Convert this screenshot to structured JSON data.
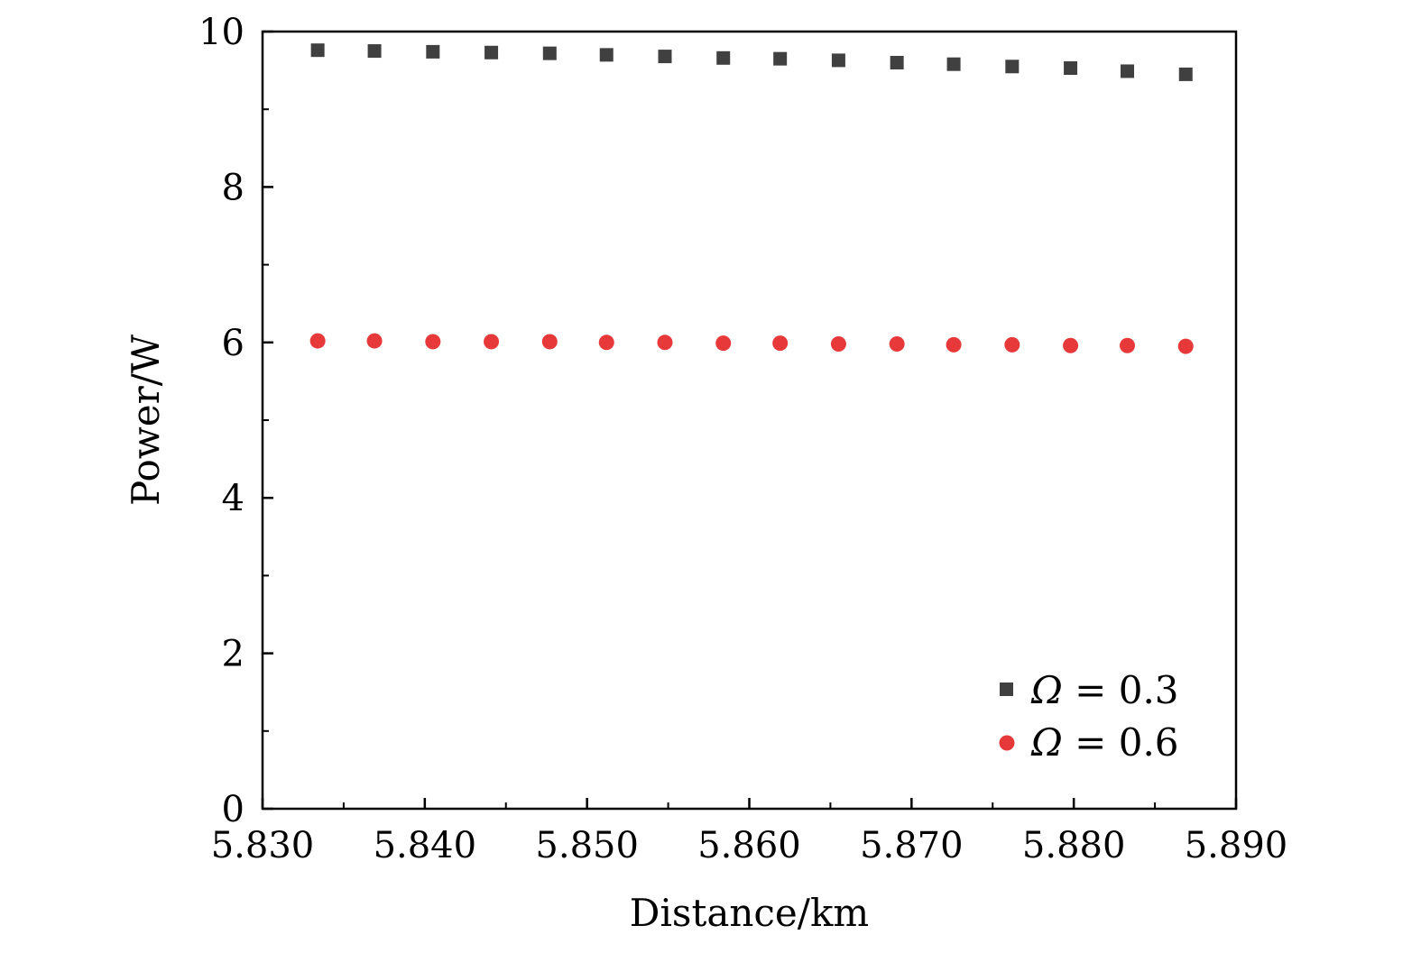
{
  "chart_data": {
    "type": "scatter",
    "title": "",
    "xlabel": "Distance/km",
    "ylabel": "Power/W",
    "xlim": [
      5.83,
      5.89
    ],
    "ylim": [
      0,
      10
    ],
    "x_ticks": [
      5.83,
      5.84,
      5.85,
      5.86,
      5.87,
      5.88,
      5.89
    ],
    "x_tick_labels": [
      "5.830",
      "5.840",
      "5.850",
      "5.860",
      "5.870",
      "5.880",
      "5.890"
    ],
    "y_ticks": [
      0,
      2,
      4,
      6,
      8,
      10
    ],
    "y_tick_labels": [
      "0",
      "2",
      "4",
      "6",
      "8",
      "10"
    ],
    "grid": false,
    "legend_position": "bottom-right",
    "series": [
      {
        "name": "Ω = 0.3",
        "name_symbol": "Ω",
        "name_rest": " = 0.3",
        "marker": "square",
        "color": "#404040",
        "x": [
          5.8334,
          5.8369,
          5.8405,
          5.8441,
          5.8477,
          5.8512,
          5.8548,
          5.8584,
          5.8619,
          5.8655,
          5.8691,
          5.8726,
          5.8762,
          5.8798,
          5.8833,
          5.8869
        ],
        "y": [
          9.76,
          9.75,
          9.74,
          9.73,
          9.72,
          9.7,
          9.68,
          9.66,
          9.65,
          9.63,
          9.6,
          9.58,
          9.55,
          9.53,
          9.49,
          9.45
        ]
      },
      {
        "name": "Ω = 0.6",
        "name_symbol": "Ω",
        "name_rest": " = 0.6",
        "marker": "circle",
        "color": "#e8393a",
        "x": [
          5.8334,
          5.8369,
          5.8405,
          5.8441,
          5.8477,
          5.8512,
          5.8548,
          5.8584,
          5.8619,
          5.8655,
          5.8691,
          5.8726,
          5.8762,
          5.8798,
          5.8833,
          5.8869
        ],
        "y": [
          6.02,
          6.02,
          6.01,
          6.01,
          6.01,
          6.0,
          6.0,
          5.99,
          5.99,
          5.98,
          5.98,
          5.97,
          5.97,
          5.96,
          5.96,
          5.95
        ]
      }
    ]
  }
}
